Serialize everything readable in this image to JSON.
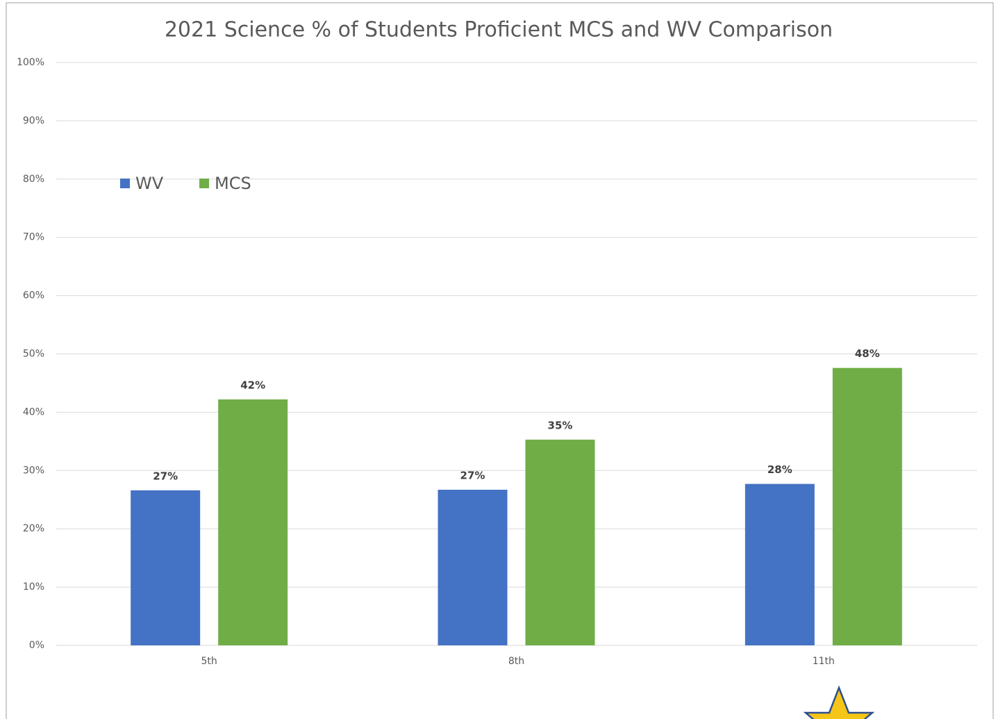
{
  "chart_data": {
    "type": "bar",
    "title": "2021 Science % of Students Proficient MCS and WV Comparison",
    "categories": [
      "5th",
      "8th",
      "11th"
    ],
    "series": [
      {
        "name": "WV",
        "color": "#4472c4",
        "values": [
          26.6,
          26.7,
          27.7
        ],
        "value_labels": [
          "27%",
          "27%",
          "28%"
        ]
      },
      {
        "name": "MCS",
        "color": "#70ad47",
        "values": [
          42.2,
          35.3,
          47.6
        ],
        "value_labels": [
          "42%",
          "35%",
          "48%"
        ]
      }
    ],
    "ylim": [
      0,
      100
    ],
    "yticks": [
      {
        "value": 0,
        "label": "0%"
      },
      {
        "value": 10,
        "label": "10%"
      },
      {
        "value": 20,
        "label": "20%"
      },
      {
        "value": 30,
        "label": "30%"
      },
      {
        "value": 40,
        "label": "40%"
      },
      {
        "value": 50,
        "label": "50%"
      },
      {
        "value": 60,
        "label": "60%"
      },
      {
        "value": 70,
        "label": "70%"
      },
      {
        "value": 80,
        "label": "80%"
      },
      {
        "value": 90,
        "label": "90%"
      },
      {
        "value": 100,
        "label": "100%"
      }
    ],
    "grid": true
  }
}
